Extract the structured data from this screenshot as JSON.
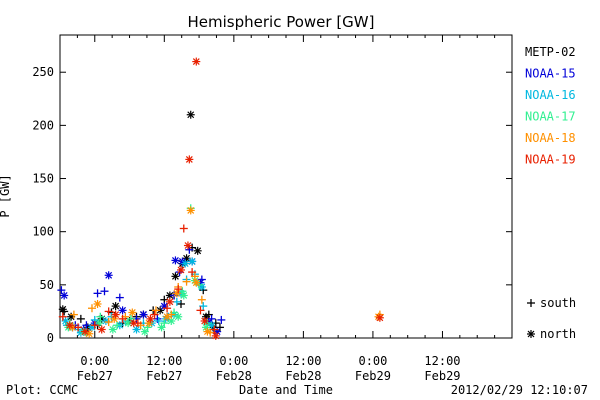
{
  "chart_data": {
    "type": "scatter",
    "title": "Hemispheric Power [GW]",
    "ylabel": "P [GW]",
    "xlabel": "Date and Time",
    "ylim": [
      0,
      285
    ],
    "xlim": [
      -0.25,
      3.0
    ],
    "y_ticks": [
      0,
      50,
      100,
      150,
      200,
      250
    ],
    "x_ticks": [
      {
        "x": 0.0,
        "time": "0:00",
        "date": "Feb27"
      },
      {
        "x": 0.5,
        "time": "12:00",
        "date": "Feb27"
      },
      {
        "x": 1.0,
        "time": "0:00",
        "date": "Feb28"
      },
      {
        "x": 1.5,
        "time": "12:00",
        "date": "Feb28"
      },
      {
        "x": 2.0,
        "time": "0:00",
        "date": "Feb29"
      },
      {
        "x": 2.5,
        "time": "12:00",
        "date": "Feb29"
      }
    ],
    "grid": false,
    "legend_position": "right",
    "marker_legend": [
      {
        "symbol": "+",
        "label": "south"
      },
      {
        "symbol": "*",
        "label": "north"
      }
    ],
    "series": [
      {
        "name": "METP-02",
        "color": "#000000",
        "south": [
          [
            -0.22,
            25
          ],
          [
            -0.1,
            18
          ],
          [
            0.02,
            12
          ],
          [
            0.12,
            24
          ],
          [
            0.2,
            14
          ],
          [
            0.3,
            20
          ],
          [
            0.42,
            26
          ],
          [
            0.5,
            36
          ],
          [
            0.57,
            40
          ],
          [
            0.62,
            32
          ],
          [
            0.66,
            72
          ],
          [
            0.7,
            85
          ],
          [
            0.78,
            45
          ],
          [
            0.82,
            22
          ],
          [
            0.87,
            14
          ],
          [
            0.9,
            10
          ]
        ],
        "north": [
          [
            -0.23,
            27
          ],
          [
            -0.17,
            20
          ],
          [
            -0.05,
            10
          ],
          [
            0.05,
            18
          ],
          [
            0.15,
            30
          ],
          [
            0.25,
            16
          ],
          [
            0.35,
            22
          ],
          [
            0.47,
            26
          ],
          [
            0.54,
            40
          ],
          [
            0.58,
            58
          ],
          [
            0.63,
            70
          ],
          [
            0.66,
            75
          ],
          [
            0.69,
            210
          ],
          [
            0.74,
            82
          ],
          [
            0.8,
            20
          ],
          [
            0.85,
            10
          ]
        ]
      },
      {
        "name": "NOAA-15",
        "color": "#0000d8",
        "south": [
          [
            -0.24,
            45
          ],
          [
            -0.14,
            12
          ],
          [
            -0.06,
            12
          ],
          [
            0.02,
            42
          ],
          [
            0.07,
            44
          ],
          [
            0.18,
            38
          ],
          [
            0.3,
            18
          ],
          [
            0.45,
            18
          ],
          [
            0.52,
            20
          ],
          [
            0.57,
            40
          ],
          [
            0.61,
            62
          ],
          [
            0.68,
            83
          ],
          [
            0.77,
            55
          ],
          [
            0.84,
            18
          ],
          [
            0.91,
            17
          ]
        ],
        "north": [
          [
            -0.22,
            40
          ],
          [
            -0.16,
            10
          ],
          [
            -0.08,
            8
          ],
          [
            0.0,
            14
          ],
          [
            0.1,
            59
          ],
          [
            0.2,
            26
          ],
          [
            0.35,
            22
          ],
          [
            0.5,
            30
          ],
          [
            0.58,
            73
          ],
          [
            0.63,
            72
          ],
          [
            0.7,
            72
          ],
          [
            0.76,
            52
          ],
          [
            0.82,
            15
          ],
          [
            0.88,
            6
          ]
        ]
      },
      {
        "name": "NOAA-16",
        "color": "#00b8e0",
        "south": [
          [
            -0.2,
            12
          ],
          [
            -0.12,
            8
          ],
          [
            0.0,
            17
          ],
          [
            0.12,
            20
          ],
          [
            0.22,
            16
          ],
          [
            0.35,
            14
          ],
          [
            0.46,
            16
          ],
          [
            0.53,
            20
          ],
          [
            0.59,
            34
          ],
          [
            0.66,
            55
          ],
          [
            0.72,
            60
          ],
          [
            0.78,
            30
          ],
          [
            0.86,
            8
          ]
        ],
        "north": [
          [
            -0.21,
            16
          ],
          [
            -0.1,
            5
          ],
          [
            -0.02,
            10
          ],
          [
            0.08,
            16
          ],
          [
            0.18,
            12
          ],
          [
            0.3,
            8
          ],
          [
            0.41,
            14
          ],
          [
            0.51,
            18
          ],
          [
            0.57,
            22
          ],
          [
            0.62,
            42
          ],
          [
            0.65,
            70
          ],
          [
            0.7,
            72
          ],
          [
            0.77,
            48
          ],
          [
            0.84,
            12
          ]
        ]
      },
      {
        "name": "NOAA-17",
        "color": "#30f090",
        "south": [
          [
            -0.18,
            14
          ],
          [
            -0.06,
            5
          ],
          [
            0.04,
            20
          ],
          [
            0.16,
            12
          ],
          [
            0.26,
            18
          ],
          [
            0.38,
            10
          ],
          [
            0.5,
            14
          ],
          [
            0.57,
            24
          ],
          [
            0.63,
            44
          ],
          [
            0.69,
            122
          ],
          [
            0.75,
            50
          ],
          [
            0.81,
            14
          ]
        ],
        "north": [
          [
            -0.19,
            10
          ],
          [
            -0.08,
            6
          ],
          [
            0.03,
            14
          ],
          [
            0.13,
            8
          ],
          [
            0.24,
            14
          ],
          [
            0.36,
            6
          ],
          [
            0.48,
            10
          ],
          [
            0.55,
            16
          ],
          [
            0.6,
            20
          ],
          [
            0.64,
            40
          ],
          [
            0.72,
            54
          ],
          [
            0.8,
            10
          ]
        ]
      },
      {
        "name": "NOAA-18",
        "color": "#ff9000",
        "south": [
          [
            -0.15,
            22
          ],
          [
            -0.02,
            28
          ],
          [
            0.1,
            15
          ],
          [
            0.22,
            20
          ],
          [
            0.33,
            12
          ],
          [
            0.44,
            26
          ],
          [
            0.55,
            22
          ],
          [
            0.6,
            48
          ],
          [
            0.66,
            53
          ],
          [
            0.72,
            58
          ],
          [
            0.77,
            36
          ],
          [
            0.83,
            5
          ],
          [
            2.05,
            22
          ]
        ],
        "north": [
          [
            -0.16,
            10
          ],
          [
            -0.04,
            4
          ],
          [
            0.02,
            32
          ],
          [
            0.14,
            18
          ],
          [
            0.27,
            24
          ],
          [
            0.39,
            14
          ],
          [
            0.52,
            20
          ],
          [
            0.59,
            42
          ],
          [
            0.69,
            120
          ],
          [
            0.73,
            52
          ],
          [
            0.81,
            6
          ],
          [
            2.04,
            20
          ]
        ]
      },
      {
        "name": "NOAA-19",
        "color": "#e82000",
        "south": [
          [
            -0.23,
            20
          ],
          [
            -0.12,
            10
          ],
          [
            0.0,
            12
          ],
          [
            0.1,
            25
          ],
          [
            0.2,
            18
          ],
          [
            0.31,
            14
          ],
          [
            0.43,
            22
          ],
          [
            0.52,
            28
          ],
          [
            0.6,
            46
          ],
          [
            0.64,
            103
          ],
          [
            0.7,
            62
          ],
          [
            0.76,
            26
          ],
          [
            0.86,
            8
          ]
        ],
        "north": [
          [
            -0.18,
            12
          ],
          [
            -0.07,
            6
          ],
          [
            0.05,
            8
          ],
          [
            0.15,
            22
          ],
          [
            0.28,
            14
          ],
          [
            0.4,
            18
          ],
          [
            0.54,
            34
          ],
          [
            0.62,
            64
          ],
          [
            0.67,
            87
          ],
          [
            0.68,
            168
          ],
          [
            0.73,
            260
          ],
          [
            0.79,
            16
          ],
          [
            0.87,
            2
          ],
          [
            2.05,
            19
          ]
        ]
      }
    ]
  },
  "footer": {
    "plot_credit": "Plot: CCMC",
    "timestamp": "2012/02/29 12:10:07"
  }
}
